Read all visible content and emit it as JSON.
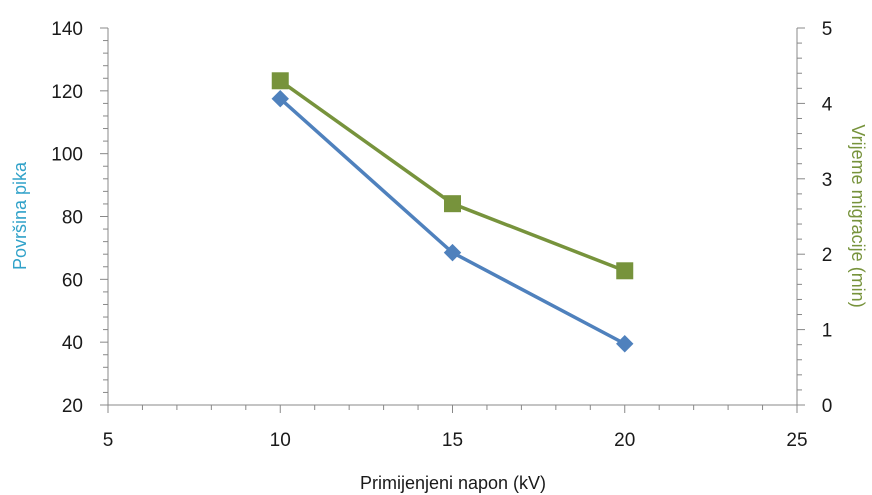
{
  "chart_data": {
    "type": "line",
    "title": "",
    "xlabel": "Primijenjeni napon (kV)",
    "ylabel_left": "Površina pika",
    "ylabel_right": "Vrijeme migracije (min)",
    "xlim": [
      5,
      25
    ],
    "x_ticks": [
      5,
      10,
      15,
      20,
      25
    ],
    "ylim_left": [
      20,
      140
    ],
    "y_left_ticks": [
      20,
      40,
      60,
      80,
      100,
      120,
      140
    ],
    "ylim_right": [
      0,
      5
    ],
    "y_right_ticks": [
      0,
      1,
      2,
      3,
      4,
      5
    ],
    "grid": false,
    "legend": "none",
    "series": [
      {
        "axis": "left",
        "color": "#4F81BD",
        "marker": "diamond",
        "x": [
          10,
          15,
          20
        ],
        "values": [
          117.5,
          68.5,
          39.5
        ]
      },
      {
        "axis": "right",
        "color": "#77933C",
        "marker": "square",
        "x": [
          10,
          15,
          20
        ],
        "values": [
          4.3,
          2.67,
          1.78
        ]
      }
    ],
    "colors": {
      "ylabel_left": "#31A2C9",
      "ylabel_right": "#77933C",
      "axis": "#888888"
    }
  }
}
